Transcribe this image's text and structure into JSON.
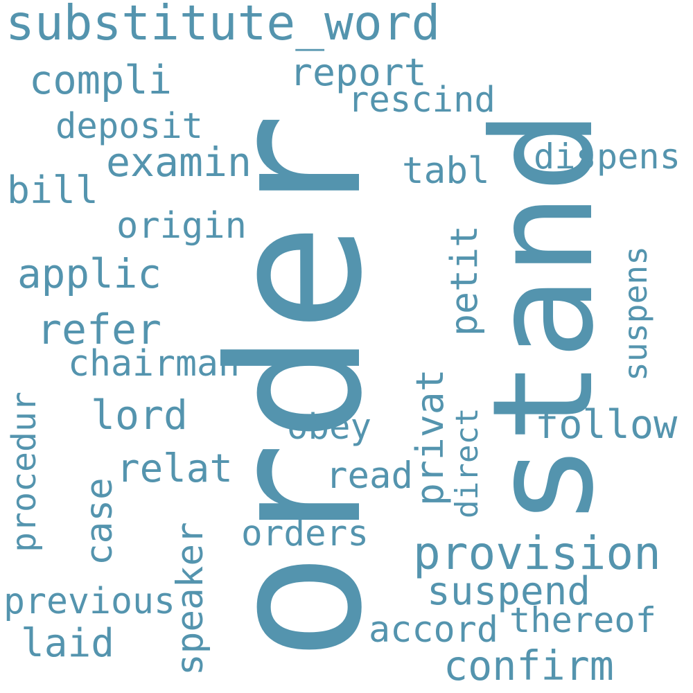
{
  "color": "#5494ae",
  "words": [
    {
      "text": "order",
      "vertical": true
    },
    {
      "text": "stand",
      "vertical": true
    },
    {
      "text": "substitute_word",
      "vertical": false
    },
    {
      "text": "compli",
      "vertical": false
    },
    {
      "text": "report",
      "vertical": false
    },
    {
      "text": "rescind",
      "vertical": false
    },
    {
      "text": "deposit",
      "vertical": false
    },
    {
      "text": "examin",
      "vertical": false
    },
    {
      "text": "bill",
      "vertical": false
    },
    {
      "text": "tabl",
      "vertical": false
    },
    {
      "text": "dispens",
      "vertical": false
    },
    {
      "text": "origin",
      "vertical": false
    },
    {
      "text": "applic",
      "vertical": false
    },
    {
      "text": "petit",
      "vertical": true
    },
    {
      "text": "suspens",
      "vertical": true
    },
    {
      "text": "refer",
      "vertical": false
    },
    {
      "text": "chairman",
      "vertical": false
    },
    {
      "text": "privat",
      "vertical": true
    },
    {
      "text": "lord",
      "vertical": false
    },
    {
      "text": "follow",
      "vertical": false
    },
    {
      "text": "direct",
      "vertical": true
    },
    {
      "text": "obey",
      "vertical": false
    },
    {
      "text": "procedur",
      "vertical": true
    },
    {
      "text": "relat",
      "vertical": false
    },
    {
      "text": "read",
      "vertical": false
    },
    {
      "text": "case",
      "vertical": true
    },
    {
      "text": "speaker",
      "vertical": true
    },
    {
      "text": "orders",
      "vertical": false
    },
    {
      "text": "provision",
      "vertical": false
    },
    {
      "text": "suspend",
      "vertical": false
    },
    {
      "text": "previous",
      "vertical": false
    },
    {
      "text": "thereof",
      "vertical": false
    },
    {
      "text": "accord",
      "vertical": false
    },
    {
      "text": "laid",
      "vertical": false
    },
    {
      "text": "confirm",
      "vertical": false
    }
  ]
}
